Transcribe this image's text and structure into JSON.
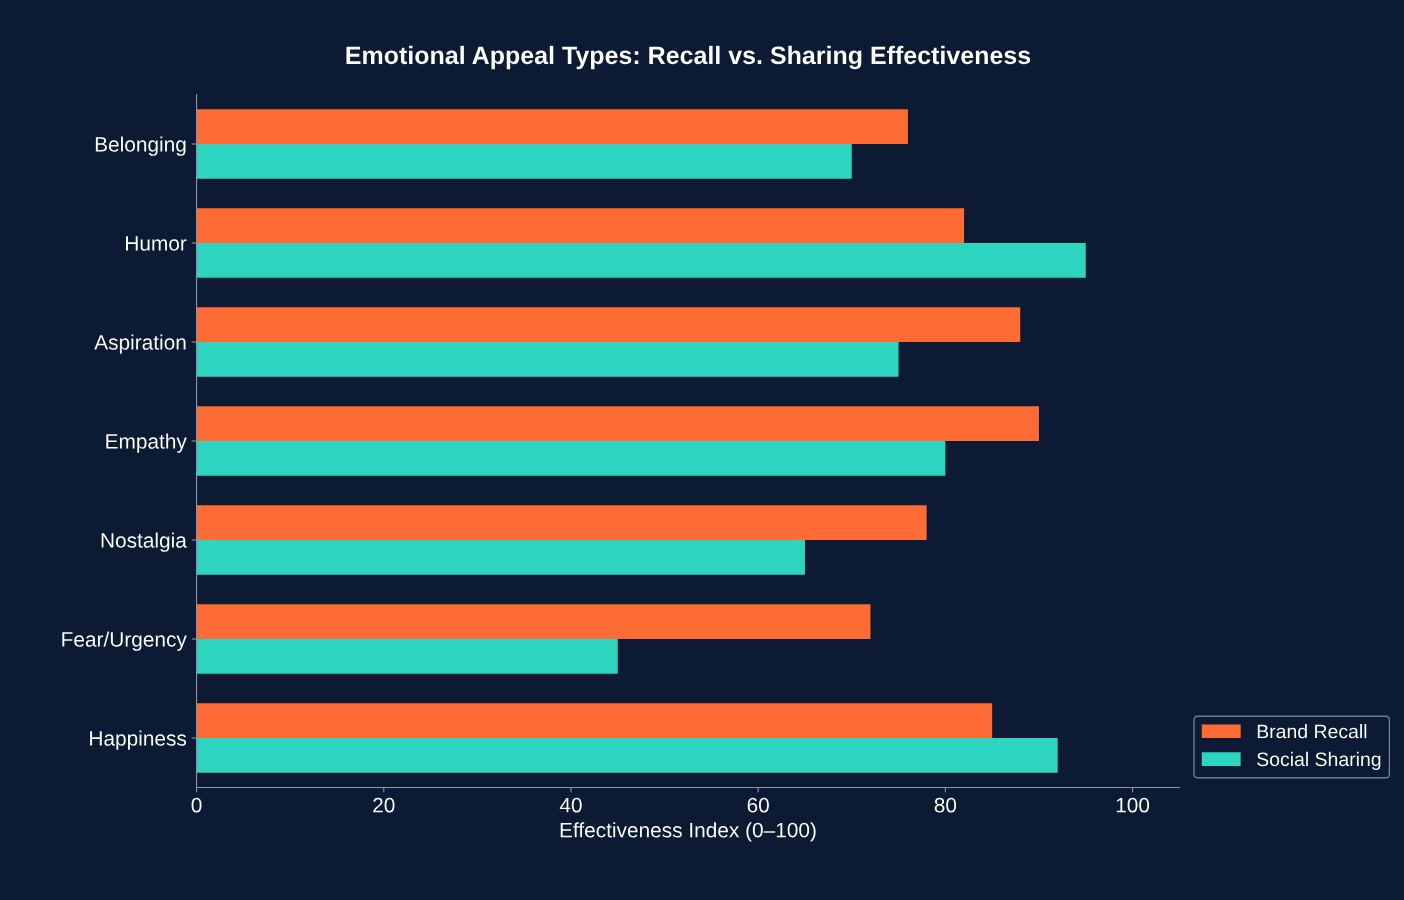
{
  "chart_data": {
    "type": "bar",
    "orientation": "horizontal",
    "title": "Emotional Appeal Types: Recall vs. Sharing Effectiveness",
    "xlabel": "Effectiveness Index (0–100)",
    "categories": [
      "Belonging",
      "Humor",
      "Aspiration",
      "Empathy",
      "Nostalgia",
      "Fear/Urgency",
      "Happiness"
    ],
    "series": [
      {
        "name": "Brand Recall",
        "color": "#ff6b35",
        "values": [
          76,
          82,
          88,
          90,
          78,
          72,
          85
        ]
      },
      {
        "name": "Social Sharing",
        "color": "#2dd4bf",
        "values": [
          70,
          95,
          75,
          80,
          65,
          45,
          92
        ]
      }
    ],
    "xlim": [
      0,
      105
    ],
    "xticks": [
      0,
      20,
      40,
      60,
      80,
      100
    ],
    "grid": false,
    "legend": "bottom right"
  }
}
